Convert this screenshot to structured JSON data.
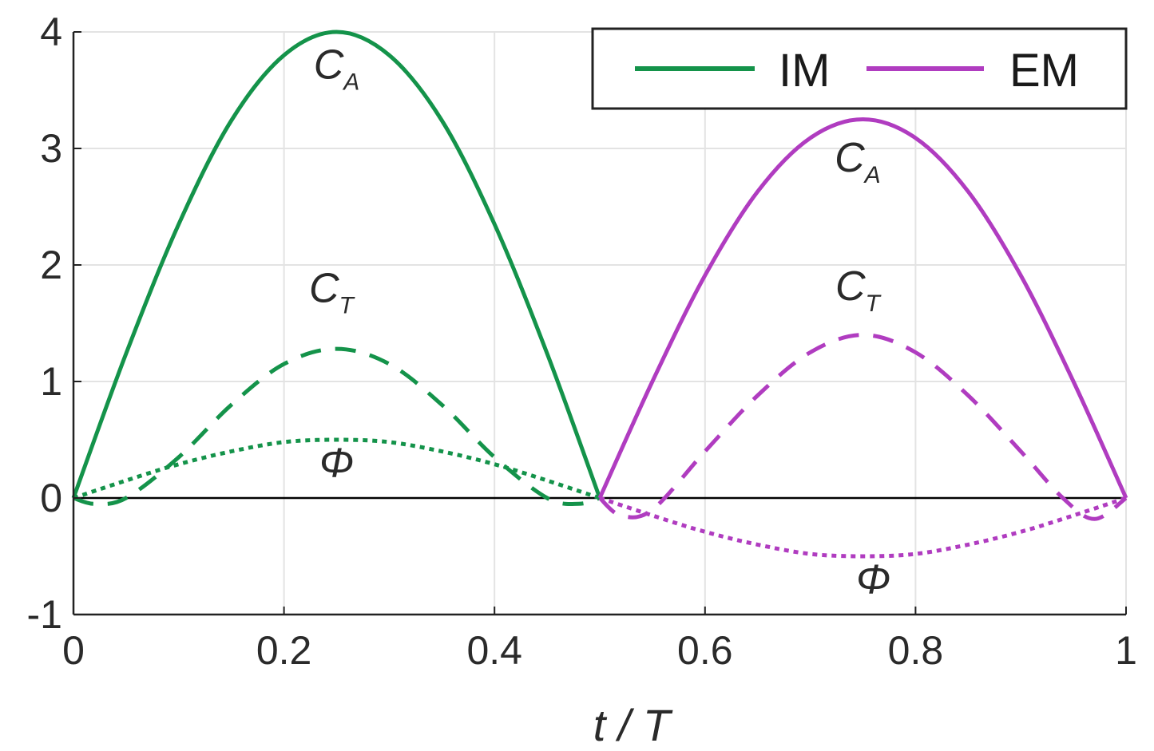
{
  "chart_data": {
    "type": "line",
    "xlabel": "t / T",
    "ylabel": "",
    "xlim": [
      0,
      1
    ],
    "ylim": [
      -1,
      4
    ],
    "xticks": [
      0,
      0.2,
      0.4,
      0.6,
      0.8,
      1
    ],
    "xtick_labels": [
      "0",
      "0.2",
      "0.4",
      "0.6",
      "0.8",
      "1"
    ],
    "yticks": [
      -1,
      0,
      1,
      2,
      3,
      4
    ],
    "ytick_labels": [
      "-1",
      "0",
      "1",
      "2",
      "3",
      "4"
    ],
    "grid": true,
    "legend_position": "top-right",
    "legend": [
      {
        "label": "IM",
        "color": "#14934a"
      },
      {
        "label": "EM",
        "color": "#b03cc0"
      }
    ],
    "series": [
      {
        "name": "IM",
        "quantity": "C_A",
        "style": "solid",
        "color": "#14934a",
        "x": [
          0,
          0.05,
          0.1,
          0.15,
          0.2,
          0.25,
          0.3,
          0.35,
          0.4,
          0.45,
          0.5
        ],
        "y": [
          0,
          1.24,
          2.35,
          3.24,
          3.8,
          4.0,
          3.8,
          3.24,
          2.35,
          1.24,
          0
        ]
      },
      {
        "name": "IM",
        "quantity": "C_T",
        "style": "dashed",
        "color": "#14934a",
        "x": [
          0,
          0.02,
          0.05,
          0.1,
          0.15,
          0.2,
          0.25,
          0.3,
          0.35,
          0.4,
          0.45,
          0.48,
          0.5
        ],
        "y": [
          0,
          -0.05,
          0,
          0.35,
          0.8,
          1.15,
          1.28,
          1.15,
          0.8,
          0.35,
          0,
          -0.05,
          0
        ]
      },
      {
        "name": "IM",
        "quantity": "Φ",
        "style": "dotted",
        "color": "#14934a",
        "x": [
          0,
          0.05,
          0.1,
          0.15,
          0.2,
          0.25,
          0.3,
          0.35,
          0.4,
          0.45,
          0.5
        ],
        "y": [
          0,
          0.15,
          0.29,
          0.4,
          0.48,
          0.5,
          0.48,
          0.4,
          0.29,
          0.15,
          0
        ]
      },
      {
        "name": "EM",
        "quantity": "C_A",
        "style": "solid",
        "color": "#b03cc0",
        "x": [
          0.5,
          0.55,
          0.6,
          0.65,
          0.7,
          0.75,
          0.8,
          0.85,
          0.9,
          0.95,
          1.0
        ],
        "y": [
          0,
          1.0,
          1.91,
          2.63,
          3.09,
          3.25,
          3.09,
          2.63,
          1.91,
          1.0,
          0
        ]
      },
      {
        "name": "EM",
        "quantity": "C_T",
        "style": "dashed",
        "color": "#b03cc0",
        "x": [
          0.5,
          0.52,
          0.55,
          0.6,
          0.65,
          0.7,
          0.75,
          0.8,
          0.85,
          0.9,
          0.94,
          0.97,
          1.0
        ],
        "y": [
          0,
          -0.15,
          -0.1,
          0.4,
          0.88,
          1.25,
          1.4,
          1.25,
          0.88,
          0.4,
          0,
          -0.18,
          0
        ]
      },
      {
        "name": "EM",
        "quantity": "Φ",
        "style": "dotted",
        "color": "#b03cc0",
        "x": [
          0.5,
          0.55,
          0.6,
          0.65,
          0.7,
          0.75,
          0.8,
          0.85,
          0.9,
          0.95,
          1.0
        ],
        "y": [
          0,
          -0.15,
          -0.29,
          -0.4,
          -0.48,
          -0.5,
          -0.48,
          -0.4,
          -0.29,
          -0.15,
          0
        ]
      }
    ],
    "annotations": [
      {
        "main": "C",
        "sub": "A",
        "x": 0.25,
        "y": 3.6
      },
      {
        "main": "C",
        "sub": "T",
        "x": 0.245,
        "y": 1.68
      },
      {
        "main": "Φ",
        "sub": "",
        "x": 0.25,
        "y": 0.18
      },
      {
        "main": "C",
        "sub": "A",
        "x": 0.745,
        "y": 2.8
      },
      {
        "main": "C",
        "sub": "T",
        "x": 0.745,
        "y": 1.7
      },
      {
        "main": "Φ",
        "sub": "",
        "x": 0.76,
        "y": -0.82
      }
    ]
  }
}
